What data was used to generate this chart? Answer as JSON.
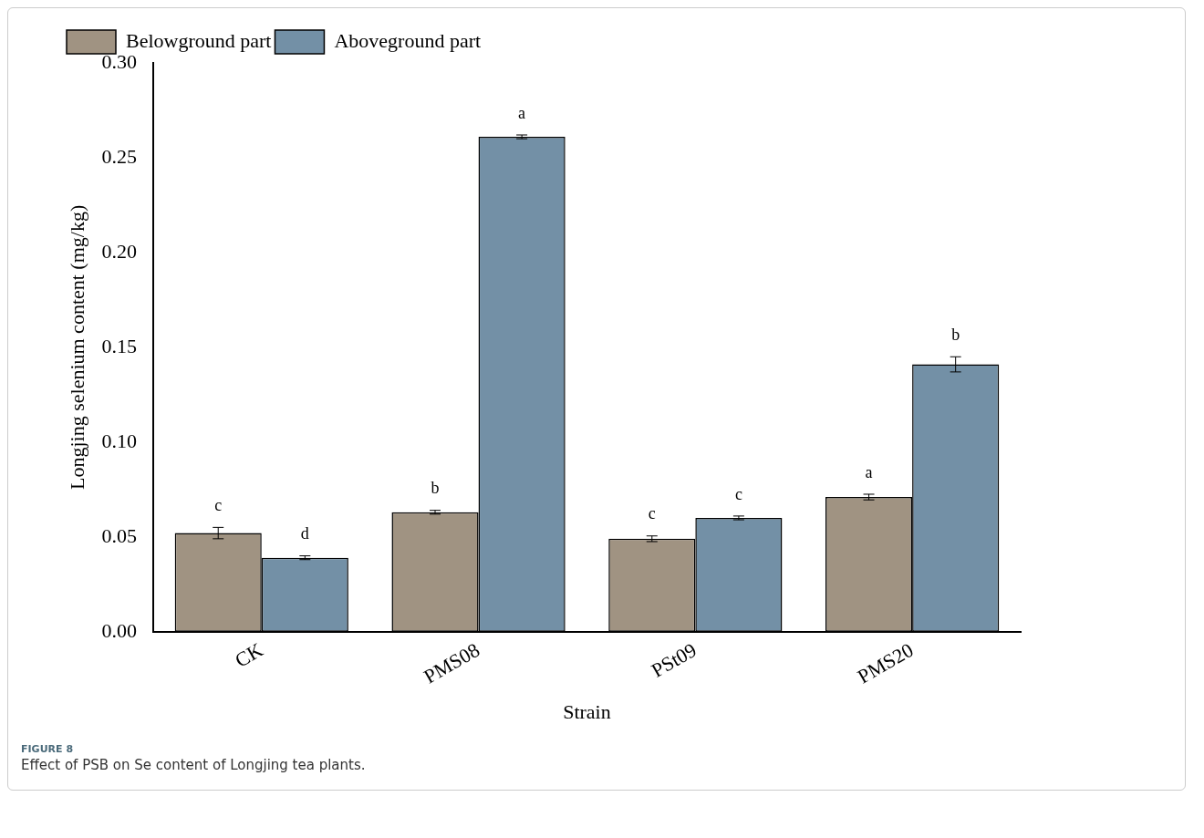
{
  "chart_data": {
    "type": "bar",
    "xlabel": "Strain",
    "ylabel": "Longjing selenium content (mg/kg)",
    "categories": [
      "CK",
      "PMS08",
      "PSt09",
      "PMS20"
    ],
    "series": [
      {
        "name": "Belowground part",
        "color": "#a09382",
        "values": [
          0.052,
          0.063,
          0.049,
          0.071
        ],
        "errors": [
          0.003,
          0.001,
          0.0015,
          0.0015
        ]
      },
      {
        "name": "Aboveground part",
        "color": "#7390a6",
        "values": [
          0.039,
          0.261,
          0.06,
          0.141
        ],
        "errors": [
          0.001,
          0.001,
          0.001,
          0.004
        ]
      }
    ],
    "ylim": [
      0,
      0.3
    ],
    "yticks": [
      {
        "value": 0,
        "label": "0.00"
      },
      {
        "value": 0.05,
        "label": "0.05"
      },
      {
        "value": 0.1,
        "label": "0.10"
      },
      {
        "value": 0.15,
        "label": "0.15"
      },
      {
        "value": 0.2,
        "label": "0.20"
      },
      {
        "value": 0.25,
        "label": "0.25"
      },
      {
        "value": 0.3,
        "label": "0.30"
      }
    ],
    "legend": "top left",
    "grid": false,
    "annotations": [
      {
        "text": "c",
        "x": "CK",
        "y": 0.052
      },
      {
        "text": "d",
        "x": "CK",
        "y": 0.039
      },
      {
        "text": "b",
        "x": "PMS08",
        "y": 0.063
      },
      {
        "text": "a",
        "x": "PMS08",
        "y": 0.261
      },
      {
        "text": "c",
        "x": "PSt09",
        "y": 0.049
      },
      {
        "text": "c",
        "x": "PSt09",
        "y": 0.06
      },
      {
        "text": "a",
        "x": "PMS20",
        "y": 0.071
      },
      {
        "text": "b",
        "x": "PMS20",
        "y": 0.141
      },
      "FIGURE 8",
      "Effect of PSB on Se content of Longjing tea plants."
    ]
  }
}
